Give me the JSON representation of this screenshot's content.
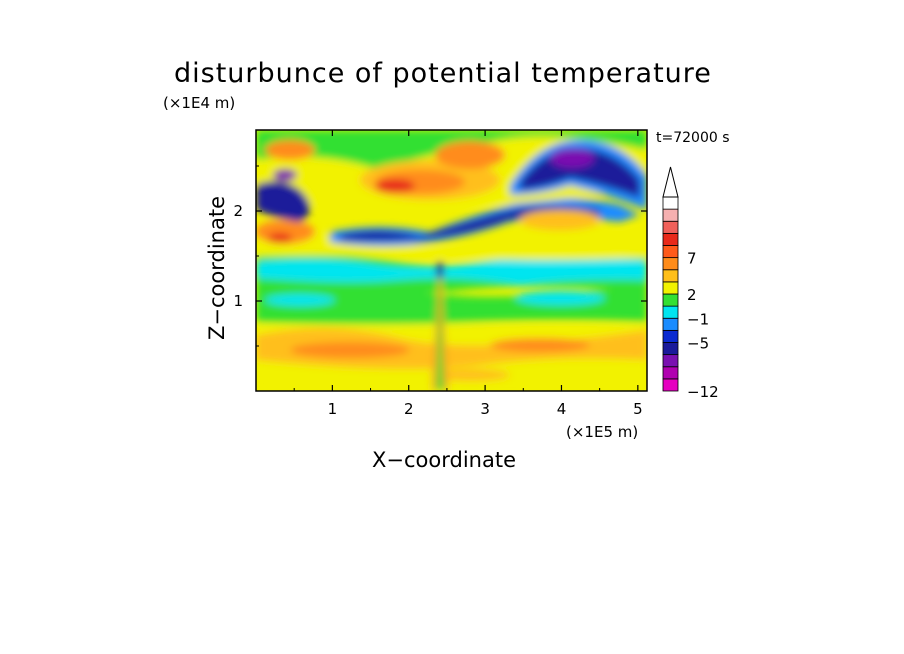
{
  "chart_data": {
    "type": "heatmap",
    "title": "disturbunce of potential temperature",
    "time_label": "t=72000 s",
    "xlabel": "X−coordinate",
    "ylabel": "Z−coordinate",
    "x_unit": "(×1E5 m)",
    "y_unit": "(×1E4 m)",
    "xlim": [
      0,
      5.12
    ],
    "ylim": [
      0,
      2.9
    ],
    "x_ticks": [
      "1",
      "2",
      "3",
      "4",
      "5"
    ],
    "y_ticks": [
      "1",
      "2"
    ],
    "colorbar": {
      "tick_labels": [
        "7",
        "2",
        "−1",
        "−5",
        "−12"
      ],
      "colors": [
        "#e600c0",
        "#b000b0",
        "#7a10b0",
        "#1a1a9a",
        "#0a2ad0",
        "#1a8cff",
        "#00e5f0",
        "#33e033",
        "#f2f200",
        "#ffbf1a",
        "#ff8c1a",
        "#ff5a1a",
        "#e8291a",
        "#f0605a",
        "#f5b0b0",
        "#ffffff"
      ]
    }
  }
}
